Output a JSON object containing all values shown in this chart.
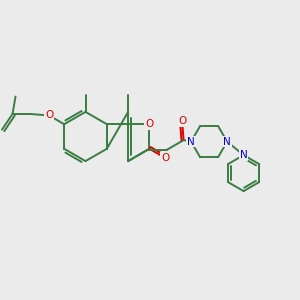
{
  "bg_color": "#ebebeb",
  "bond_color": "#3a7d44",
  "o_color": "#dd0000",
  "n_color": "#0000cc",
  "line_width": 1.4,
  "figsize": [
    3.0,
    3.0
  ],
  "dpi": 100,
  "xlim": [
    0,
    10
  ],
  "ylim": [
    0,
    10
  ]
}
